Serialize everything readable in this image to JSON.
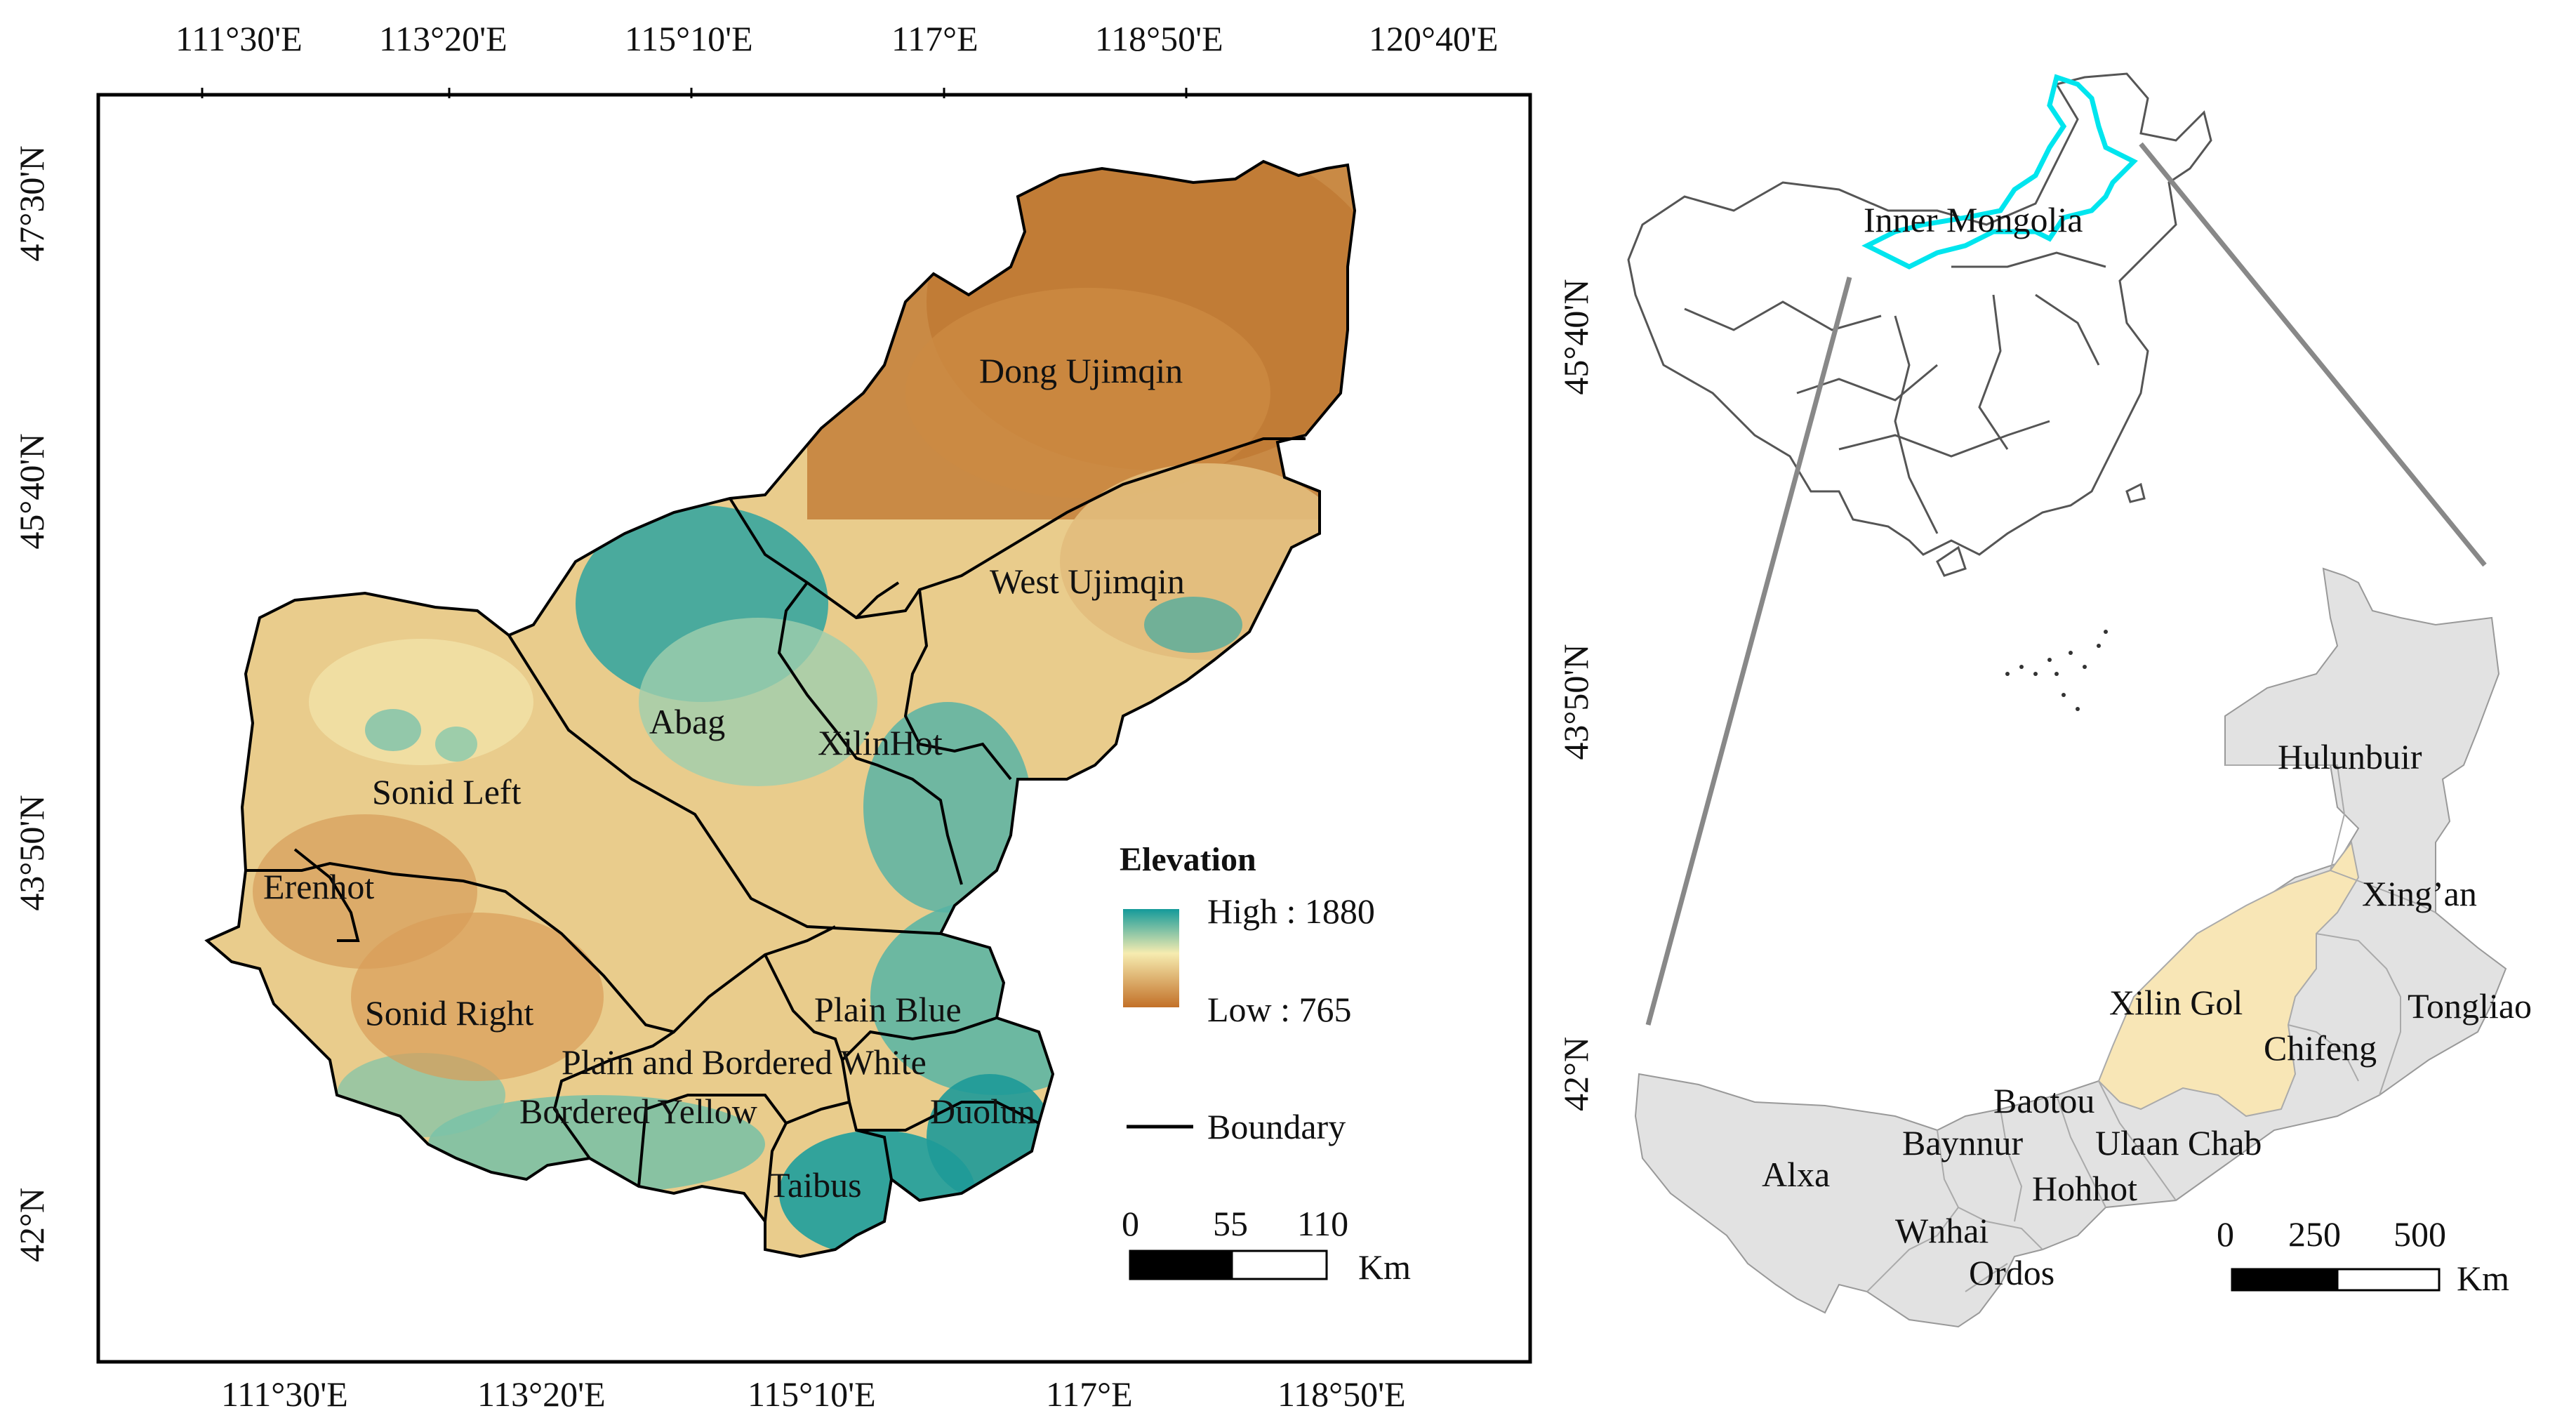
{
  "main_map": {
    "top_ticks": [
      "111°30'E",
      "113°20'E",
      "115°10'E",
      "117°E",
      "118°50'E",
      "120°40'E"
    ],
    "bottom_ticks": [
      "111°30'E",
      "113°20'E",
      "115°10'E",
      "117°E",
      "118°50'E"
    ],
    "left_ticks": [
      "47°30'N",
      "45°40'N",
      "43°50'N",
      "42°N"
    ],
    "right_ticks": [
      "45°40'N",
      "43°50'N",
      "42°N"
    ],
    "regions": [
      "Dong Ujimqin",
      "West Ujimqin",
      "Abag",
      "XilinHot",
      "Sonid Left",
      "Erenhot",
      "Sonid Right",
      "Plain Blue",
      "Plain and Bordered White",
      "Bordered Yellow",
      "Duolun",
      "Taibus"
    ],
    "legend": {
      "title": "Elevation",
      "high": "High : 1880",
      "low": "Low : 765",
      "boundary": "Boundary",
      "high_color": "#1a9a9a",
      "low_color": "#c7772a"
    },
    "scale": {
      "labels": [
        "0",
        "55",
        "110"
      ],
      "unit": "Km"
    }
  },
  "china_map": {
    "label": "Inner Mongolia",
    "highlight_color": "#00e5ee"
  },
  "inner_mongolia_map": {
    "regions": [
      "Hulunbuir",
      "Xing’an",
      "Tongliao",
      "Xilin Gol",
      "Chifeng",
      "Baotou",
      "Ulaan Chab",
      "Baynnur",
      "Hohhot",
      "Alxa",
      "Wnhai",
      "Ordos"
    ],
    "highlight_color": "#f8e6b6",
    "fill_color": "#e2e2e2",
    "scale": {
      "labels": [
        "0",
        "250",
        "500"
      ],
      "unit": "Km"
    }
  }
}
